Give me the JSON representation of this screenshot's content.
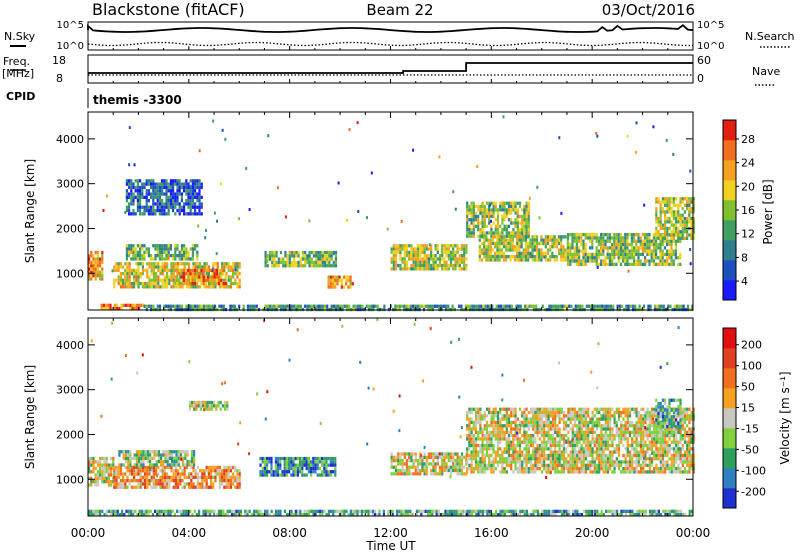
{
  "header": {
    "station": "Blackstone (fitACF)",
    "beam": "Beam 22",
    "date": "03/Oct/2016"
  },
  "top_panels": {
    "nsky_label": "N.Sky",
    "nsky_ticks": [
      "10^5",
      "10^0"
    ],
    "nsearch_label": "N.Search",
    "nsearch_ticks": [
      "10^5",
      "10^0"
    ],
    "freq_label": "Freq.",
    "freq_unit": "[MHz]",
    "freq_ticks": [
      "18",
      "8"
    ],
    "nave_label": "Nave",
    "nave_ticks": [
      "60",
      "0"
    ],
    "cpid_label": "CPID",
    "cpid_value": "themis -3300"
  },
  "axes": {
    "ylabel": "Slant Range [km]",
    "yticks": [
      "4000",
      "3000",
      "2000",
      "1000"
    ],
    "xlabel": "Time UT",
    "xticks": [
      "00:00",
      "04:00",
      "08:00",
      "12:00",
      "16:00",
      "20:00",
      "00:00"
    ]
  },
  "colorbars": {
    "power": {
      "label": "Power [dB]",
      "ticks": [
        "28",
        "24",
        "20",
        "16",
        "12",
        "8",
        "4"
      ]
    },
    "velocity": {
      "label": "Velocity [m s⁻¹]",
      "ticks": [
        "200",
        "100",
        "50",
        "15",
        "-15",
        "-50",
        "-100",
        "-200"
      ]
    }
  },
  "colors": {
    "power_scale": [
      "#1a1aff",
      "#1e4fc0",
      "#2f7f8f",
      "#3fa060",
      "#7fbf30",
      "#f0d020",
      "#f5a020",
      "#f07020",
      "#e02010"
    ],
    "velocity_scale": [
      "#2030d0",
      "#2f80c0",
      "#2f9f5f",
      "#7fcf3f",
      "#c8c8c0",
      "#f5a020",
      "#f07020",
      "#e04020",
      "#e01010"
    ]
  },
  "chart_data": [
    {
      "type": "heatmap",
      "title": "Power",
      "xlabel": "Time UT",
      "ylabel": "Slant Range [km]",
      "xlim": [
        "00:00",
        "24:00"
      ],
      "ylim": [
        180,
        4600
      ],
      "colorbar_range": [
        0,
        30
      ],
      "regions": [
        {
          "t0": 0.0,
          "t1": 0.6,
          "r0": 900,
          "r1": 1500,
          "level": 0.7
        },
        {
          "t0": 0.0,
          "t1": 0.3,
          "r0": 1000,
          "r1": 1200,
          "level": 0.85
        },
        {
          "t0": 1.0,
          "t1": 6.0,
          "r0": 700,
          "r1": 1250,
          "level": 0.6
        },
        {
          "t0": 3.5,
          "t1": 5.5,
          "r0": 800,
          "r1": 1100,
          "level": 0.75
        },
        {
          "t0": 1.5,
          "t1": 4.3,
          "r0": 1350,
          "r1": 1650,
          "level": 0.45
        },
        {
          "t0": 1.5,
          "t1": 4.5,
          "r0": 2300,
          "r1": 3100,
          "level": 0.2
        },
        {
          "t0": 7.0,
          "t1": 9.8,
          "r0": 1150,
          "r1": 1500,
          "level": 0.45
        },
        {
          "t0": 9.5,
          "t1": 10.5,
          "r0": 700,
          "r1": 950,
          "level": 0.7
        },
        {
          "t0": 12.0,
          "t1": 15.0,
          "r0": 1100,
          "r1": 1650,
          "level": 0.55
        },
        {
          "t0": 15.0,
          "t1": 17.5,
          "r0": 1850,
          "r1": 2600,
          "level": 0.5
        },
        {
          "t0": 15.5,
          "t1": 19.0,
          "r0": 1300,
          "r1": 1850,
          "level": 0.55
        },
        {
          "t0": 19.0,
          "t1": 23.5,
          "r0": 1200,
          "r1": 1900,
          "level": 0.5
        },
        {
          "t0": 22.5,
          "t1": 24.0,
          "r0": 1800,
          "r1": 2700,
          "level": 0.55
        },
        {
          "t0": 0.5,
          "t1": 2.2,
          "r0": 200,
          "r1": 320,
          "level": 0.8
        },
        {
          "t0": 2.2,
          "t1": 24.0,
          "r0": 200,
          "r1": 300,
          "level": 0.35
        }
      ]
    },
    {
      "type": "heatmap",
      "title": "Velocity",
      "xlabel": "Time UT",
      "ylabel": "Slant Range [km]",
      "xlim": [
        "00:00",
        "24:00"
      ],
      "ylim": [
        180,
        4600
      ],
      "colorbar_range": [
        -200,
        200
      ],
      "regions": [
        {
          "t0": 0.0,
          "t1": 1.0,
          "r0": 900,
          "r1": 1500,
          "level": 0.5
        },
        {
          "t0": 1.0,
          "t1": 6.0,
          "r0": 800,
          "r1": 1300,
          "level": 0.65
        },
        {
          "t0": 1.2,
          "t1": 4.2,
          "r0": 1350,
          "r1": 1650,
          "level": 0.4
        },
        {
          "t0": 4.0,
          "t1": 5.5,
          "r0": 2600,
          "r1": 2750,
          "level": 0.45
        },
        {
          "t0": 6.8,
          "t1": 9.8,
          "r0": 1100,
          "r1": 1500,
          "level": 0.2
        },
        {
          "t0": 12.0,
          "t1": 15.0,
          "r0": 1100,
          "r1": 1600,
          "level": 0.5
        },
        {
          "t0": 15.0,
          "t1": 24.0,
          "r0": 1200,
          "r1": 2600,
          "level": 0.5
        },
        {
          "t0": 22.5,
          "t1": 23.5,
          "r0": 2200,
          "r1": 2800,
          "level": 0.3
        },
        {
          "t0": 0.0,
          "t1": 24.0,
          "r0": 200,
          "r1": 320,
          "level": 0.3
        }
      ]
    }
  ]
}
